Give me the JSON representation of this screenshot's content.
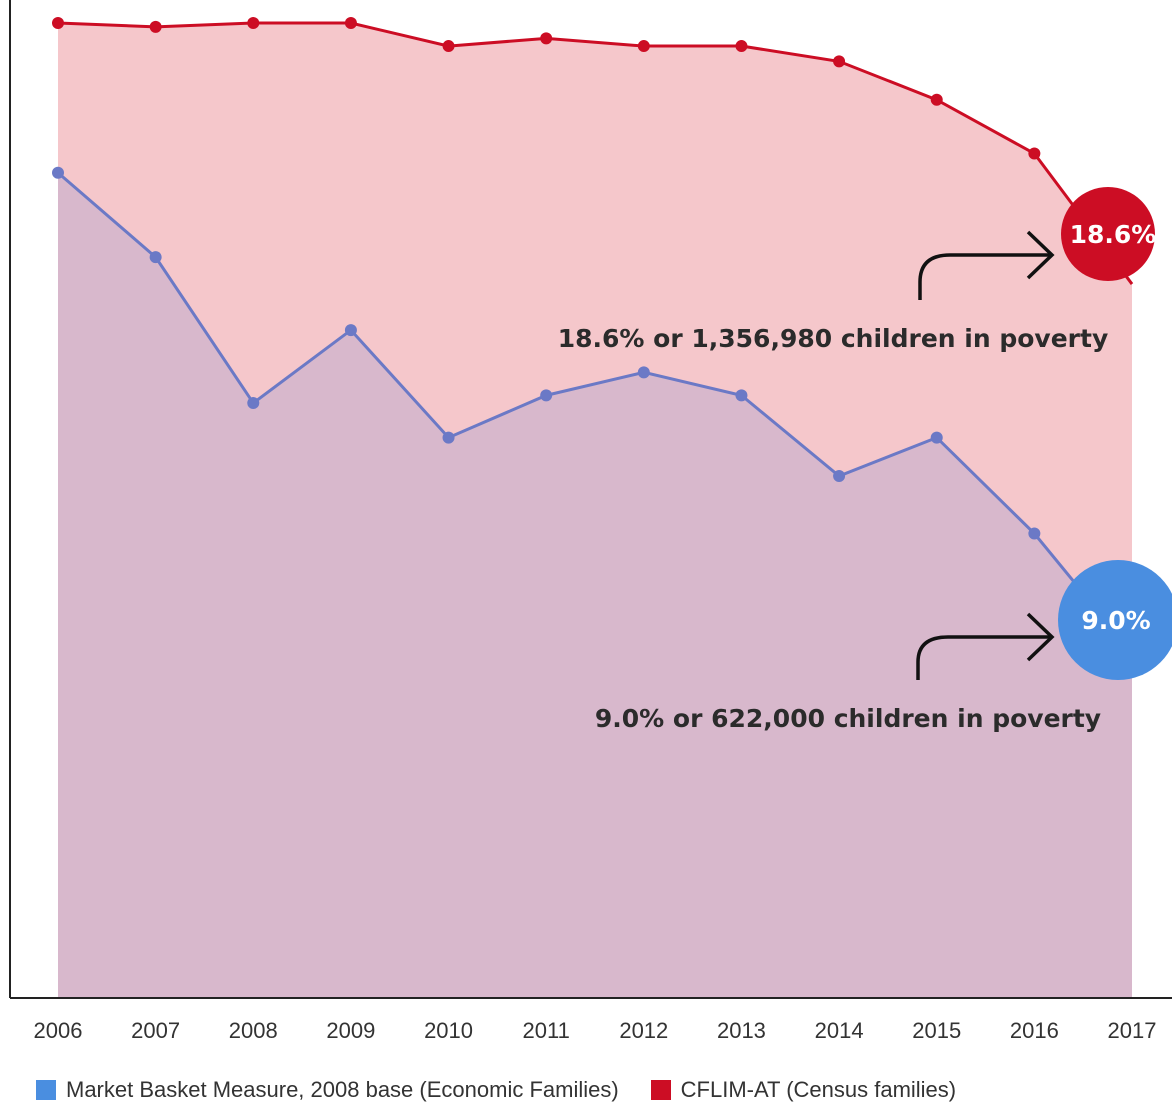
{
  "chart_data": {
    "type": "area",
    "x": [
      2006,
      2007,
      2008,
      2009,
      2010,
      2011,
      2012,
      2013,
      2014,
      2015,
      2016,
      2017
    ],
    "x_tick_labels": [
      "2006",
      "2007",
      "2008",
      "2009",
      "2010",
      "2011",
      "2012",
      "2013",
      "2014",
      "2015",
      "2016",
      "2017"
    ],
    "ylim": [
      0,
      26
    ],
    "grid": false,
    "legend_position": "bottom",
    "series": [
      {
        "name": "CFLIM-AT (Census families)",
        "color": "#cc0d24",
        "fill": "#f5c7cb",
        "values": [
          25.4,
          25.3,
          25.4,
          25.4,
          24.8,
          25.0,
          24.8,
          24.8,
          24.4,
          23.4,
          22.0,
          18.6
        ]
      },
      {
        "name": "Market Basket Measure, 2008 base (Economic Families)",
        "color": "#6b79c6",
        "fill": "#d8b8cc",
        "values": [
          21.5,
          19.3,
          15.5,
          17.4,
          14.6,
          15.7,
          16.3,
          15.7,
          13.6,
          14.6,
          12.1,
          9.0
        ]
      }
    ],
    "annotations": [
      {
        "series": "CFLIM-AT (Census families)",
        "x": 2017,
        "bubble_text": "18.6%",
        "text": "18.6% or 1,356,980 children in poverty",
        "color": "#cc0d24"
      },
      {
        "series": "Market Basket Measure, 2008 base (Economic Families)",
        "x": 2017,
        "bubble_text": "9.0%",
        "text": "9.0% or 622,000 children in poverty",
        "color": "#4a8ee0"
      }
    ],
    "legend": [
      {
        "label": "Market Basket Measure, 2008 base (Economic Families)",
        "color": "#4a8ee0"
      },
      {
        "label": "CFLIM-AT (Census families)",
        "color": "#cc0d24"
      }
    ]
  }
}
